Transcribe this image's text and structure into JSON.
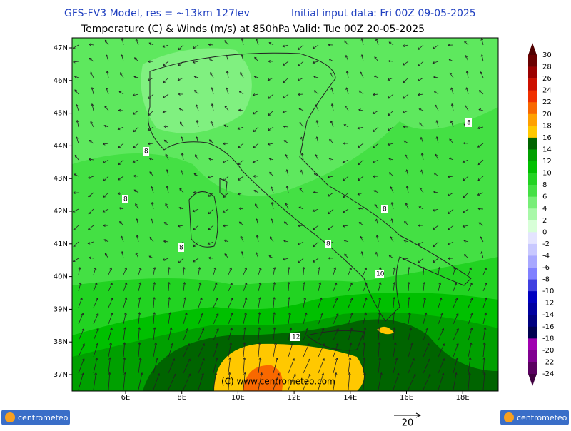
{
  "header": {
    "model": "GFS-FV3 Model, res = ~13km 127lev",
    "init": "Initial input data: Fri 00Z 09-05-2025",
    "subtitle": "Temperature (C) & Winds (m/s) at 850hPa  Valid: Tue 00Z 20-05-2025"
  },
  "latitude_labels": [
    "47N",
    "46N",
    "45N",
    "44N",
    "43N",
    "42N",
    "41N",
    "40N",
    "39N",
    "38N",
    "37N"
  ],
  "longitude_labels": [
    "6E",
    "8E",
    "10E",
    "12E",
    "14E",
    "16E",
    "18E"
  ],
  "contour_labels": [
    "8",
    "8",
    "8",
    "8",
    "8",
    "8",
    "12",
    "10"
  ],
  "copyright": "(C) www.centrometeo.com",
  "wind_scale": "20",
  "logos": [
    "centrometeo",
    "centrometeo"
  ],
  "colorbar": {
    "labels": [
      "30",
      "28",
      "26",
      "24",
      "22",
      "20",
      "18",
      "16",
      "14",
      "12",
      "10",
      "8",
      "6",
      "4",
      "2",
      "0",
      "-2",
      "-4",
      "-6",
      "-8",
      "-10",
      "-12",
      "-14",
      "-16",
      "-18",
      "-20",
      "-22",
      "-24"
    ],
    "colors": [
      "#6a0000",
      "#9a0000",
      "#cc1000",
      "#f03000",
      "#f86800",
      "#ffa000",
      "#ffc800",
      "#006400",
      "#00a000",
      "#00c000",
      "#22d322",
      "#44e044",
      "#77ee77",
      "#a8f8a8",
      "#d8ffd8",
      "#e4e4ff",
      "#c8c8ff",
      "#a8a8ff",
      "#8080ff",
      "#4040e0",
      "#0000c0",
      "#0000a0",
      "#000080",
      "#000050",
      "#a000b0",
      "#800090",
      "#5a0060"
    ],
    "top_color": "#500000",
    "bottom_color": "#400040"
  }
}
